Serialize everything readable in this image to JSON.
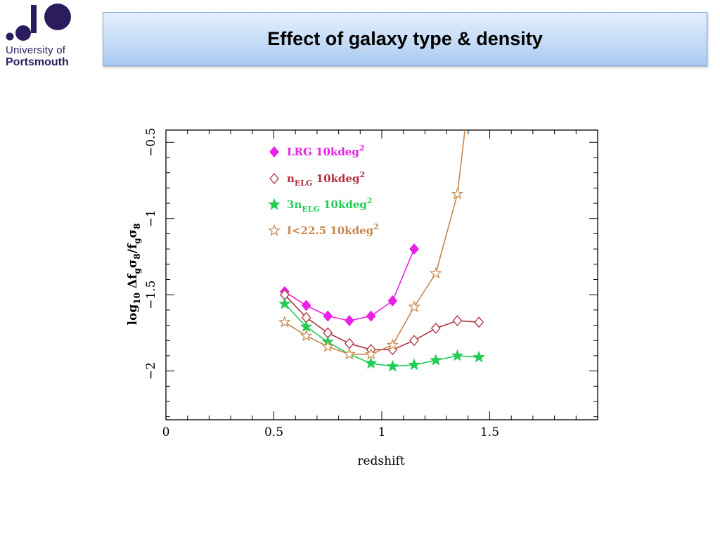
{
  "logo": {
    "line1": "University of",
    "line2": "Portsmouth",
    "color": "#2b1c5e"
  },
  "slide": {
    "title": "Effect of galaxy type & density"
  },
  "chart_data": {
    "type": "line",
    "xlabel": "redshift",
    "ylabel": "log10 Δf_g σ_8/f_g σ_8",
    "xlim": [
      0,
      2.0
    ],
    "ylim": [
      -2.32,
      -0.42
    ],
    "xticks": [
      0,
      0.5,
      1,
      1.5
    ],
    "xtick_labels": [
      "0",
      "0.5",
      "1",
      "1.5"
    ],
    "yticks": [
      -0.5,
      -1,
      -1.5,
      -2
    ],
    "ytick_labels": [
      "−0.5",
      "−1",
      "−1.5",
      "−2"
    ],
    "grid": false,
    "legend_position": "top-left",
    "series": [
      {
        "name": "LRG 10kdeg2",
        "color": "#e620e6",
        "marker": "filled-diamond",
        "x": [
          0.55,
          0.65,
          0.75,
          0.85,
          0.95,
          1.05,
          1.15
        ],
        "y": [
          -1.48,
          -1.57,
          -1.64,
          -1.67,
          -1.64,
          -1.54,
          -1.2
        ]
      },
      {
        "name": "nELG 10kdeg2",
        "color": "#b03040",
        "marker": "open-diamond",
        "x": [
          0.55,
          0.65,
          0.75,
          0.85,
          0.95,
          1.05,
          1.15,
          1.25,
          1.35,
          1.45
        ],
        "y": [
          -1.5,
          -1.65,
          -1.75,
          -1.82,
          -1.86,
          -1.86,
          -1.8,
          -1.72,
          -1.67,
          -1.68
        ]
      },
      {
        "name": "3nELG 10kdeg2",
        "color": "#22cc55",
        "marker": "filled-star",
        "x": [
          0.55,
          0.65,
          0.75,
          0.85,
          0.95,
          1.05,
          1.15,
          1.25,
          1.35,
          1.45
        ],
        "y": [
          -1.56,
          -1.71,
          -1.81,
          -1.89,
          -1.95,
          -1.97,
          -1.96,
          -1.93,
          -1.9,
          -1.91
        ]
      },
      {
        "name": "I<22.5 10kdeg2",
        "color": "#c8864a",
        "marker": "open-star",
        "x": [
          0.55,
          0.65,
          0.75,
          0.85,
          0.95,
          1.05,
          1.15,
          1.25,
          1.35,
          1.385
        ],
        "y": [
          -1.68,
          -1.77,
          -1.84,
          -1.89,
          -1.89,
          -1.83,
          -1.58,
          -1.36,
          -0.84,
          -0.42
        ]
      }
    ],
    "legend": [
      {
        "main": "LRG",
        "sub": "",
        "rest": " 10kdeg",
        "sup": "2"
      },
      {
        "main": "n",
        "sub": "ELG",
        "rest": " 10kdeg",
        "sup": "2"
      },
      {
        "main": "3n",
        "sub": "ELG",
        "rest": " 10kdeg",
        "sup": "2"
      },
      {
        "main": "I<22.5",
        "sub": "",
        "rest": " 10kdeg",
        "sup": "2"
      }
    ]
  }
}
